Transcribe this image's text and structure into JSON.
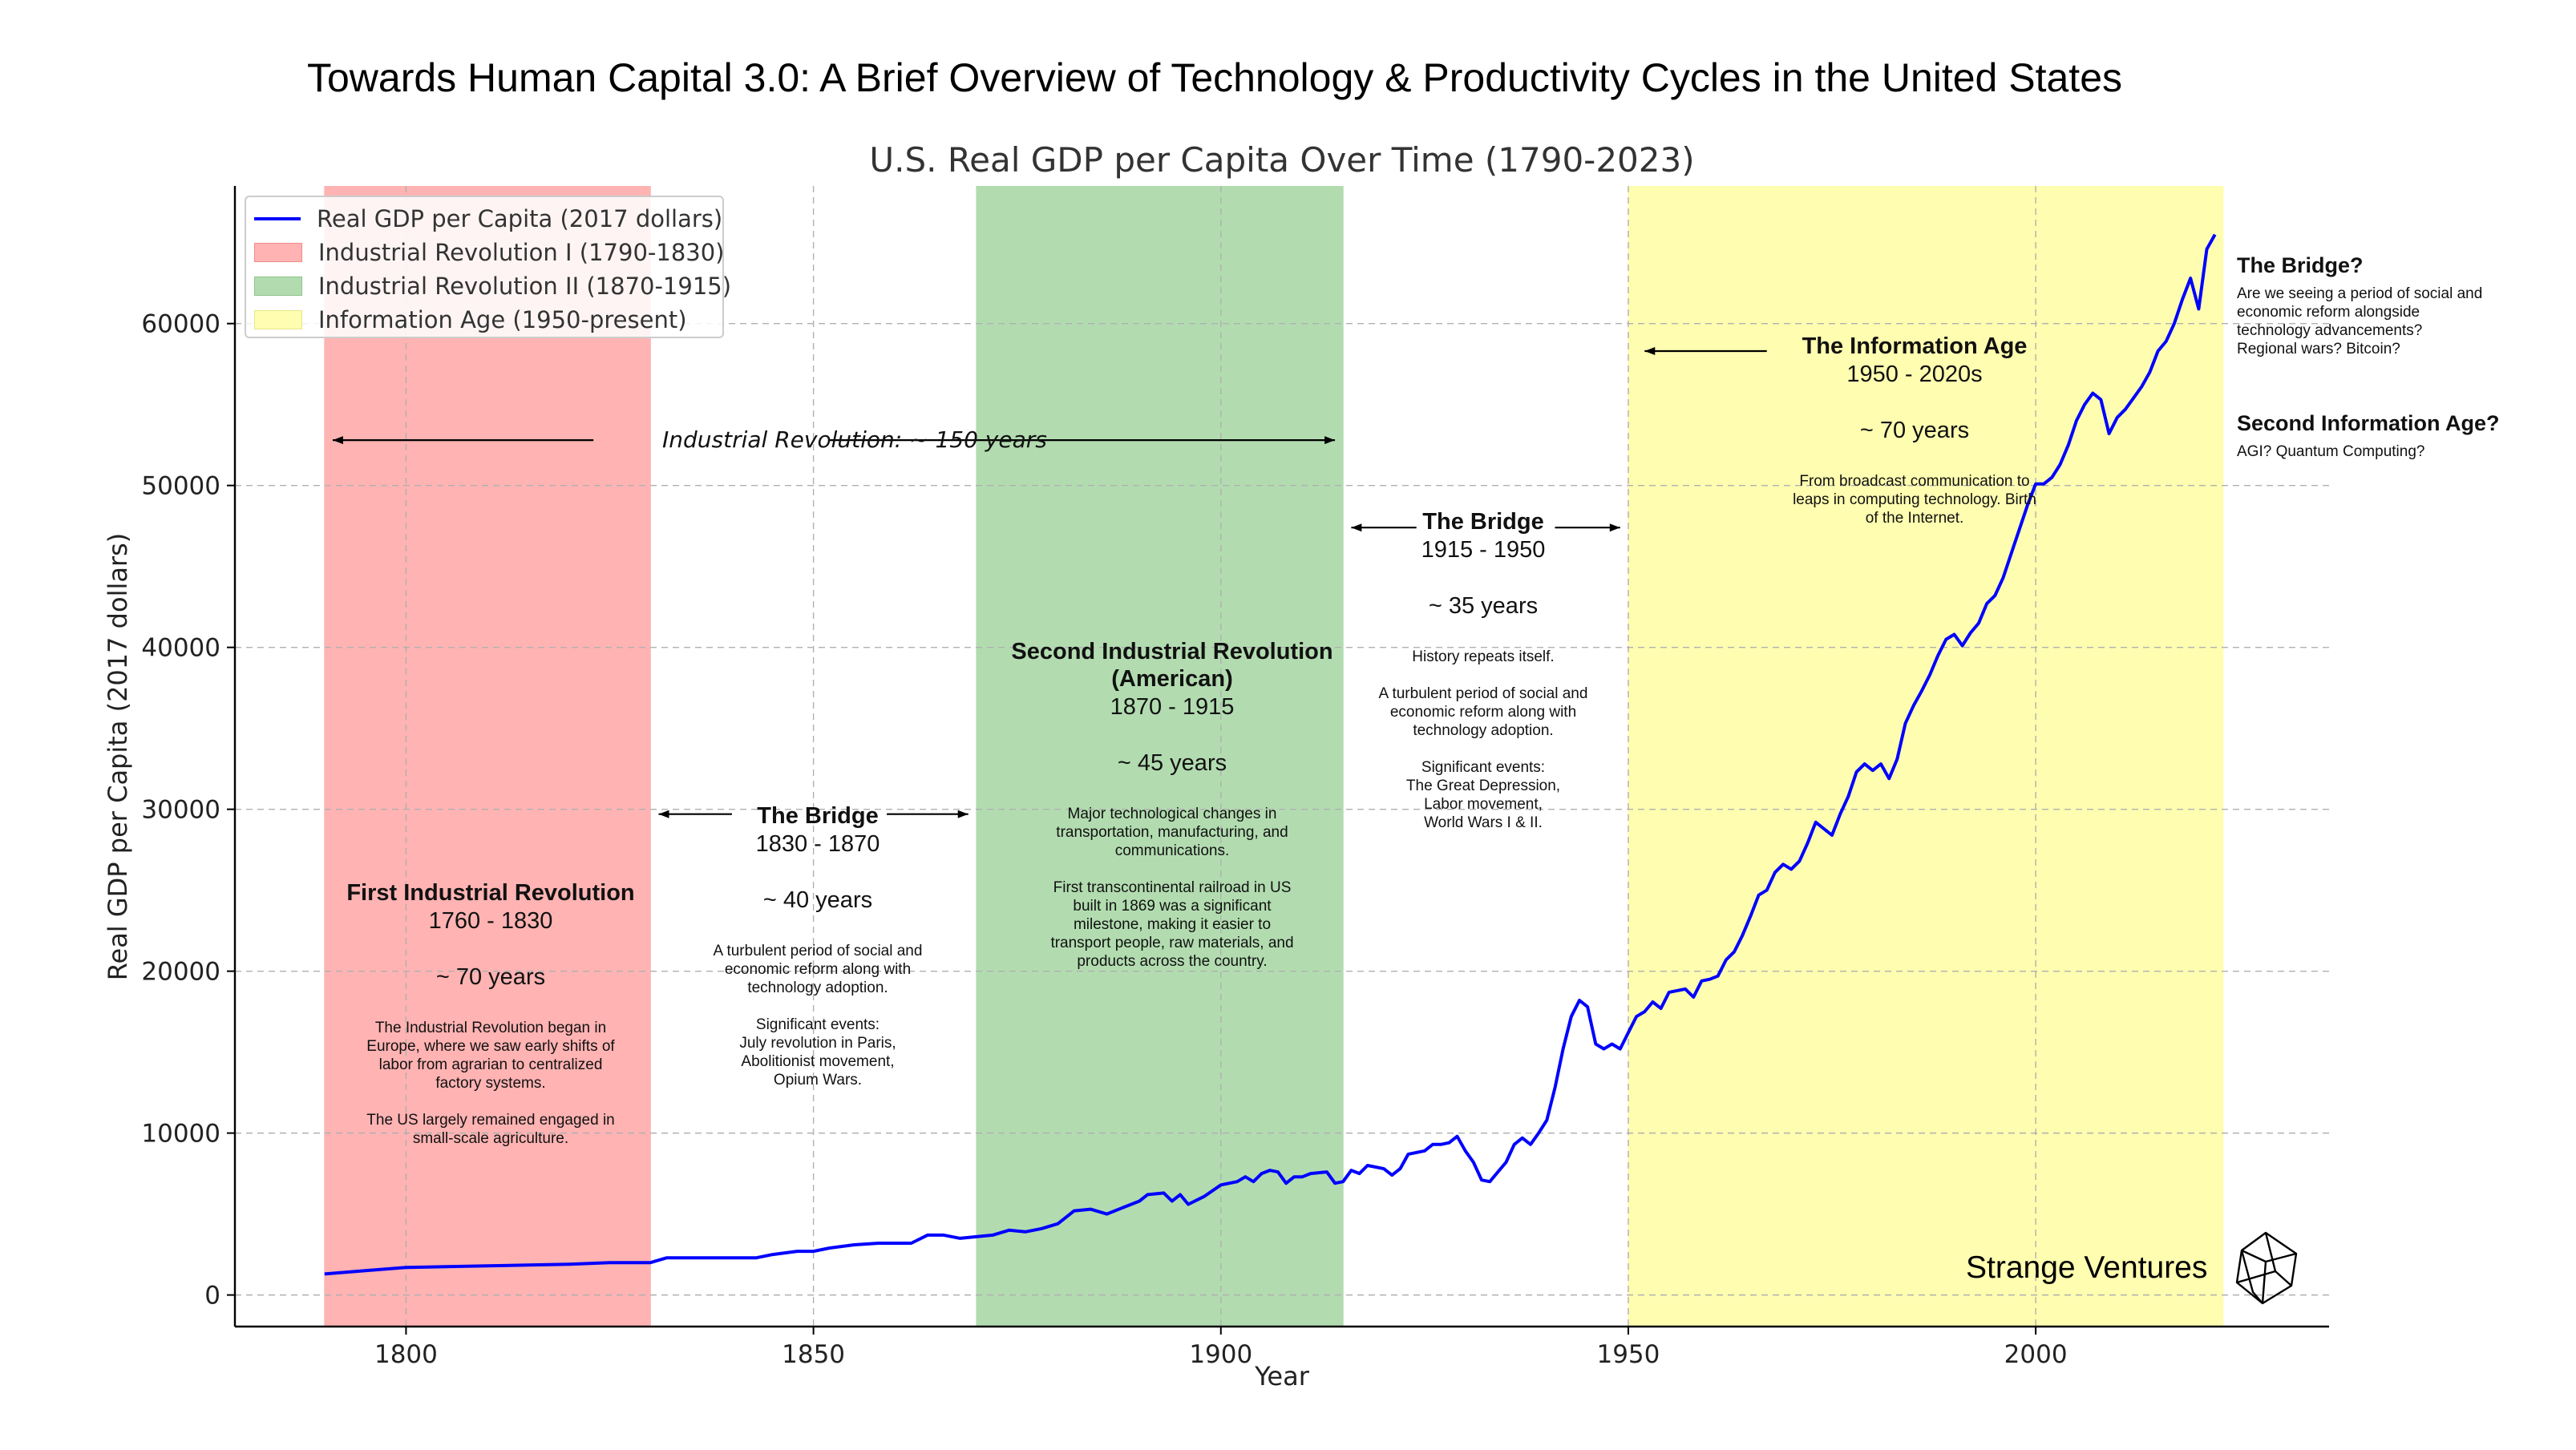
{
  "header": {
    "main_title": "Towards Human Capital 3.0: A Brief Overview of Technology & Productivity Cycles in the United States"
  },
  "brand": {
    "name": "Strange Ventures",
    "logo_icon": "geometric-cube-logo-icon"
  },
  "chart_data": {
    "type": "line",
    "title": "U.S. Real GDP per Capita Over Time (1790-2023)",
    "xlabel": "Year",
    "ylabel": "Real GDP per Capita (2017 dollars)",
    "xlim": [
      1779,
      2036
    ],
    "ylim": [
      -1950,
      68500
    ],
    "xticks": [
      1800,
      1850,
      1900,
      1950,
      2000
    ],
    "yticks": [
      0,
      10000,
      20000,
      30000,
      40000,
      50000,
      60000
    ],
    "grid": true,
    "legend_position": "top-left",
    "series": [
      {
        "name": "Real GDP per Capita (2017 dollars)",
        "color": "#0000ff",
        "points": [
          [
            1790,
            1300
          ],
          [
            1795,
            1500
          ],
          [
            1800,
            1700
          ],
          [
            1805,
            1750
          ],
          [
            1810,
            1800
          ],
          [
            1815,
            1850
          ],
          [
            1820,
            1900
          ],
          [
            1825,
            2000
          ],
          [
            1830,
            2000
          ],
          [
            1832,
            2300
          ],
          [
            1835,
            2300
          ],
          [
            1840,
            2300
          ],
          [
            1843,
            2300
          ],
          [
            1845,
            2500
          ],
          [
            1848,
            2700
          ],
          [
            1850,
            2700
          ],
          [
            1852,
            2900
          ],
          [
            1855,
            3100
          ],
          [
            1858,
            3200
          ],
          [
            1860,
            3200
          ],
          [
            1862,
            3200
          ],
          [
            1864,
            3700
          ],
          [
            1866,
            3700
          ],
          [
            1868,
            3500
          ],
          [
            1870,
            3600
          ],
          [
            1872,
            3700
          ],
          [
            1874,
            4000
          ],
          [
            1876,
            3900
          ],
          [
            1878,
            4100
          ],
          [
            1880,
            4400
          ],
          [
            1882,
            5200
          ],
          [
            1884,
            5300
          ],
          [
            1886,
            5000
          ],
          [
            1888,
            5400
          ],
          [
            1890,
            5800
          ],
          [
            1891,
            6200
          ],
          [
            1893,
            6300
          ],
          [
            1894,
            5800
          ],
          [
            1895,
            6200
          ],
          [
            1896,
            5600
          ],
          [
            1898,
            6100
          ],
          [
            1900,
            6800
          ],
          [
            1902,
            7000
          ],
          [
            1903,
            7300
          ],
          [
            1904,
            7000
          ],
          [
            1905,
            7500
          ],
          [
            1906,
            7700
          ],
          [
            1907,
            7600
          ],
          [
            1908,
            6900
          ],
          [
            1909,
            7300
          ],
          [
            1910,
            7300
          ],
          [
            1911,
            7500
          ],
          [
            1913,
            7600
          ],
          [
            1914,
            6900
          ],
          [
            1915,
            7000
          ],
          [
            1916,
            7700
          ],
          [
            1917,
            7500
          ],
          [
            1918,
            8000
          ],
          [
            1920,
            7800
          ],
          [
            1921,
            7400
          ],
          [
            1922,
            7800
          ],
          [
            1923,
            8700
          ],
          [
            1925,
            8900
          ],
          [
            1926,
            9300
          ],
          [
            1927,
            9300
          ],
          [
            1928,
            9400
          ],
          [
            1929,
            9800
          ],
          [
            1930,
            8900
          ],
          [
            1931,
            8200
          ],
          [
            1932,
            7100
          ],
          [
            1933,
            7000
          ],
          [
            1934,
            7600
          ],
          [
            1935,
            8200
          ],
          [
            1936,
            9300
          ],
          [
            1937,
            9700
          ],
          [
            1938,
            9300
          ],
          [
            1939,
            10000
          ],
          [
            1940,
            10800
          ],
          [
            1941,
            12800
          ],
          [
            1942,
            15200
          ],
          [
            1943,
            17200
          ],
          [
            1944,
            18200
          ],
          [
            1945,
            17800
          ],
          [
            1946,
            15500
          ],
          [
            1947,
            15200
          ],
          [
            1948,
            15500
          ],
          [
            1949,
            15200
          ],
          [
            1950,
            16200
          ],
          [
            1951,
            17200
          ],
          [
            1952,
            17500
          ],
          [
            1953,
            18100
          ],
          [
            1954,
            17700
          ],
          [
            1955,
            18700
          ],
          [
            1956,
            18800
          ],
          [
            1957,
            18900
          ],
          [
            1958,
            18400
          ],
          [
            1959,
            19400
          ],
          [
            1960,
            19500
          ],
          [
            1961,
            19700
          ],
          [
            1962,
            20700
          ],
          [
            1963,
            21200
          ],
          [
            1964,
            22200
          ],
          [
            1965,
            23400
          ],
          [
            1966,
            24700
          ],
          [
            1967,
            25000
          ],
          [
            1968,
            26100
          ],
          [
            1969,
            26600
          ],
          [
            1970,
            26300
          ],
          [
            1971,
            26800
          ],
          [
            1972,
            27900
          ],
          [
            1973,
            29200
          ],
          [
            1974,
            28800
          ],
          [
            1975,
            28400
          ],
          [
            1976,
            29700
          ],
          [
            1977,
            30800
          ],
          [
            1978,
            32300
          ],
          [
            1979,
            32800
          ],
          [
            1980,
            32400
          ],
          [
            1981,
            32800
          ],
          [
            1982,
            31900
          ],
          [
            1983,
            33100
          ],
          [
            1984,
            35300
          ],
          [
            1985,
            36400
          ],
          [
            1986,
            37300
          ],
          [
            1987,
            38300
          ],
          [
            1988,
            39500
          ],
          [
            1989,
            40500
          ],
          [
            1990,
            40800
          ],
          [
            1991,
            40100
          ],
          [
            1992,
            40900
          ],
          [
            1993,
            41500
          ],
          [
            1994,
            42700
          ],
          [
            1995,
            43200
          ],
          [
            1996,
            44300
          ],
          [
            1997,
            45800
          ],
          [
            1998,
            47300
          ],
          [
            1999,
            48800
          ],
          [
            2000,
            50100
          ],
          [
            2001,
            50100
          ],
          [
            2002,
            50500
          ],
          [
            2003,
            51300
          ],
          [
            2004,
            52500
          ],
          [
            2005,
            54000
          ],
          [
            2006,
            55000
          ],
          [
            2007,
            55700
          ],
          [
            2008,
            55300
          ],
          [
            2009,
            53200
          ],
          [
            2010,
            54200
          ],
          [
            2011,
            54700
          ],
          [
            2012,
            55400
          ],
          [
            2013,
            56100
          ],
          [
            2014,
            57000
          ],
          [
            2015,
            58300
          ],
          [
            2016,
            58900
          ],
          [
            2017,
            60000
          ],
          [
            2018,
            61500
          ],
          [
            2019,
            62800
          ],
          [
            2020,
            60900
          ],
          [
            2021,
            64600
          ],
          [
            2022,
            65500
          ]
        ]
      }
    ],
    "bands": [
      {
        "name": "Industrial Revolution I (1790-1830)",
        "x0": 1790,
        "x1": 1830,
        "color": "#ffb3b3"
      },
      {
        "name": "Industrial Revolution II (1870-1915)",
        "x0": 1870,
        "x1": 1915,
        "color": "#b2dcb0"
      },
      {
        "name": "Information Age (1950-present)",
        "x0": 1950,
        "x1": 2023,
        "color": "#fffdb0"
      }
    ],
    "arrows": [
      {
        "x0": 1791,
        "x1": 1823,
        "y": 52800,
        "head": "start"
      },
      {
        "x0": 1852,
        "x1": 1914,
        "y": 52800,
        "head": "end"
      },
      {
        "x0": 1831,
        "x1": 1840,
        "y": 29700,
        "head": "start"
      },
      {
        "x0": 1859,
        "x1": 1869,
        "y": 29700,
        "head": "end"
      },
      {
        "x0": 1916,
        "x1": 1924,
        "y": 47400,
        "head": "start"
      },
      {
        "x0": 1941,
        "x1": 1949,
        "y": 47400,
        "head": "end"
      },
      {
        "x0": 1952,
        "x1": 1967,
        "y": 58300,
        "head": "start"
      }
    ],
    "annotations": {
      "industrial_span": "Industrial Revolution: ~ 150 years",
      "ir1": {
        "heading": "First Industrial Revolution",
        "dates": "1760 - 1830",
        "span": "~ 70 years",
        "body": "The Industrial Revolution began in\nEurope, where we saw early shifts of\nlabor from agrarian to centralized\nfactory systems.\n\nThe US largely remained engaged in\nsmall-scale agriculture."
      },
      "bridge1": {
        "heading": "The Bridge",
        "dates": "1830 - 1870",
        "span": "~ 40 years",
        "body": "A turbulent period of social and\neconomic reform along with\ntechnology adoption.\n\nSignificant events:\nJuly revolution in Paris,\nAbolitionist movement,\nOpium Wars."
      },
      "ir2": {
        "heading": "Second Industrial Revolution\n(American)",
        "dates": "1870 - 1915",
        "span": "~ 45 years",
        "body": "Major technological changes in\ntransportation, manufacturing, and\ncommunications.\n\nFirst transcontinental railroad in US\nbuilt in 1869 was a significant\nmilestone, making it easier to\ntransport people, raw materials, and\nproducts across the country."
      },
      "bridge2": {
        "heading": "The Bridge",
        "dates": "1915 - 1950",
        "span": "~ 35 years",
        "body": "History repeats itself.\n\nA turbulent period of social and\neconomic reform along with\ntechnology adoption.\n\nSignificant events:\nThe Great Depression,\nLabor movement,\nWorld Wars I & II."
      },
      "info_age": {
        "heading": "The Information Age",
        "dates": "1950 - 2020s",
        "span": "~ 70 years",
        "body": "From broadcast communication to\nleaps in computing technology. Birth\nof the Internet."
      },
      "bridge3": {
        "heading": "The Bridge?",
        "body": "Are we seeing a period of social and\neconomic reform alongside\ntechnology advancements?\nRegional wars? Bitcoin?"
      },
      "second_info_age": {
        "heading": "Second Information Age?",
        "body": "AGI? Quantum Computing?"
      }
    }
  }
}
